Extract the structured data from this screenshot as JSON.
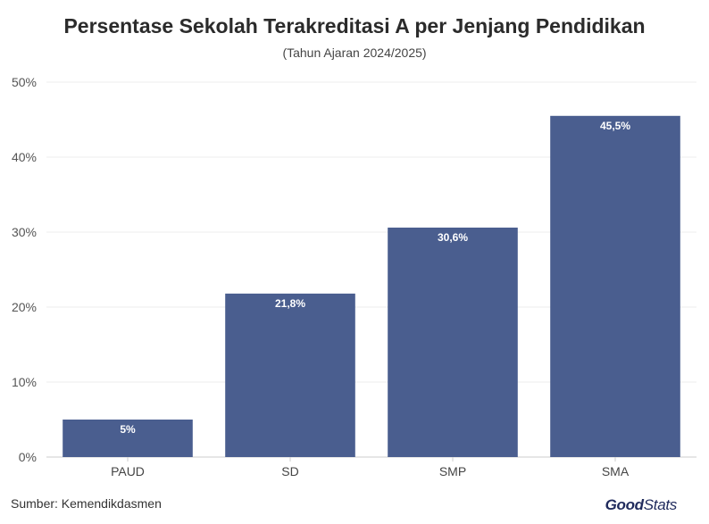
{
  "chart_data": {
    "type": "bar",
    "title": "Persentase Sekolah Terakreditasi A per Jenjang Pendidikan",
    "subtitle": "(Tahun Ajaran 2024/2025)",
    "categories": [
      "PAUD",
      "SD",
      "SMP",
      "SMA"
    ],
    "values": [
      5,
      21.8,
      30.6,
      45.5
    ],
    "data_labels": [
      "5%",
      "21,8%",
      "30,6%",
      "45,5%"
    ],
    "y_ticks": [
      "0%",
      "10%",
      "20%",
      "30%",
      "40%",
      "50%"
    ],
    "ylim": [
      0,
      50
    ],
    "xlabel": "",
    "ylabel": "",
    "grid": true,
    "bar_color": "#4a5e8f"
  },
  "footer": {
    "source": "Sumber: Kemendikdasmen",
    "logo_bold": "Good",
    "logo_light": "Stats"
  }
}
